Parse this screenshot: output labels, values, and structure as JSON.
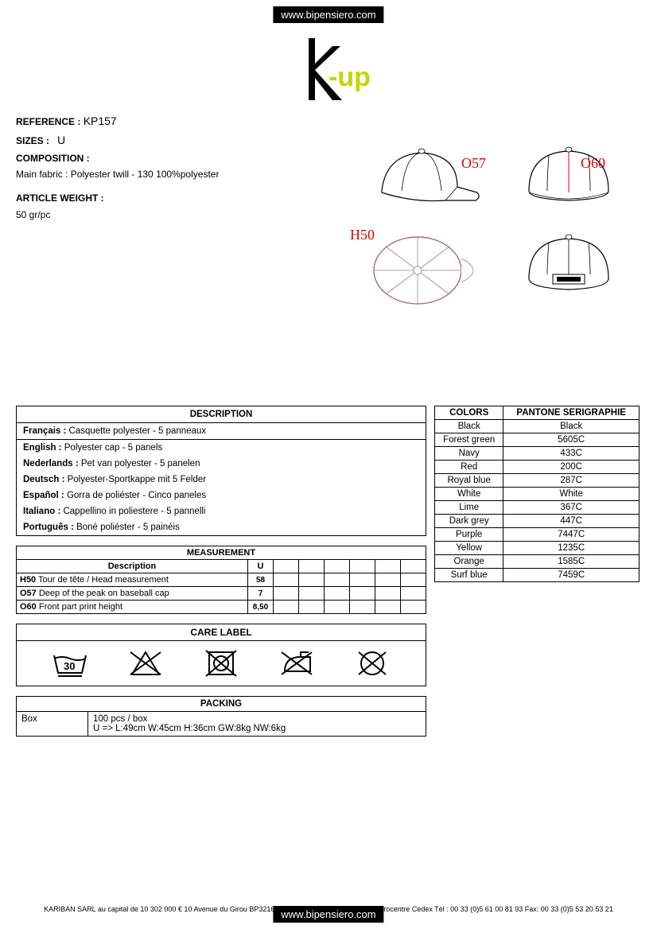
{
  "header": {
    "url": "www.bipensiero.com",
    "logo_text_k": "K",
    "logo_text_up": "-up",
    "logo_k_color": "#000000",
    "logo_up_color": "#c4d600"
  },
  "info": {
    "reference_label": "REFERENCE :",
    "reference_value": "KP157",
    "sizes_label": "SIZES :",
    "sizes_value": "U",
    "composition_label": "COMPOSITION :",
    "composition_value": "Main fabric : Polyester twill - 130  100%polyester",
    "weight_label": "ARTICLE WEIGHT :",
    "weight_value": "50 gr/pc"
  },
  "diagram": {
    "labels": {
      "o57": "O57",
      "o60": "O60",
      "h50": "H50"
    }
  },
  "description": {
    "header": "DESCRIPTION",
    "rows": [
      {
        "lang": "Français :",
        "text": " Casquette polyester - 5 panneaux"
      },
      {
        "lang": "English :",
        "text": " Polyester cap - 5 panels"
      },
      {
        "lang": "Nederlands :",
        "text": " Pet van polyester - 5 panelen"
      },
      {
        "lang": "Deutsch :",
        "text": " Polyester-Sportkappe mit 5 Felder"
      },
      {
        "lang": "Español :",
        "text": " Gorra de poliéster - Cinco paneles"
      },
      {
        "lang": "Italiano :",
        "text": " Cappellino in poliestere - 5 pannelli"
      },
      {
        "lang": "Português :",
        "text": " Boné poliéster - 5 painéis"
      }
    ]
  },
  "measurement": {
    "header": "MEASUREMENT",
    "desc_col": "Description",
    "u_col": "U",
    "rows": [
      {
        "code": "H50",
        "desc": " Tour de tête / Head measurement",
        "u": "58"
      },
      {
        "code": "O57",
        "desc": " Deep of the peak on baseball cap",
        "u": "7"
      },
      {
        "code": "O60",
        "desc": " Front part print height",
        "u": "8,50"
      }
    ]
  },
  "care": {
    "header": "CARE LABEL"
  },
  "packing": {
    "header": "PACKING",
    "box_label": "Box",
    "line1": "100 pcs / box",
    "line2": "U => L:49cm W:45cm H:36cm GW:8kg NW:6kg"
  },
  "colors": {
    "col1": "COLORS",
    "col2": "PANTONE SERIGRAPHIE",
    "rows": [
      {
        "c": "Black",
        "p": "Black"
      },
      {
        "c": "Forest green",
        "p": "5605C"
      },
      {
        "c": "Navy",
        "p": "433C"
      },
      {
        "c": "Red",
        "p": "200C"
      },
      {
        "c": "Royal blue",
        "p": "287C"
      },
      {
        "c": "White",
        "p": "White"
      },
      {
        "c": "Lime",
        "p": "367C"
      },
      {
        "c": "Dark grey",
        "p": "447C"
      },
      {
        "c": "Purple",
        "p": "7447C"
      },
      {
        "c": "Yellow",
        "p": "1235C"
      },
      {
        "c": "Orange",
        "p": "1585C"
      },
      {
        "c": "Surf blue",
        "p": "7459C"
      }
    ]
  },
  "footer": {
    "text": "KARIBAN SARL au capital de 10 302 000 € 10 Avenue du Girou BP32168 Villeneuve Les Bouloc 31621 Eurocentre Cedex Tél : 00 33 (0)5 61 00 81 93 Fax: 00 33 (0)5 53 20 53 21",
    "url": "www.bipensiero.com"
  }
}
